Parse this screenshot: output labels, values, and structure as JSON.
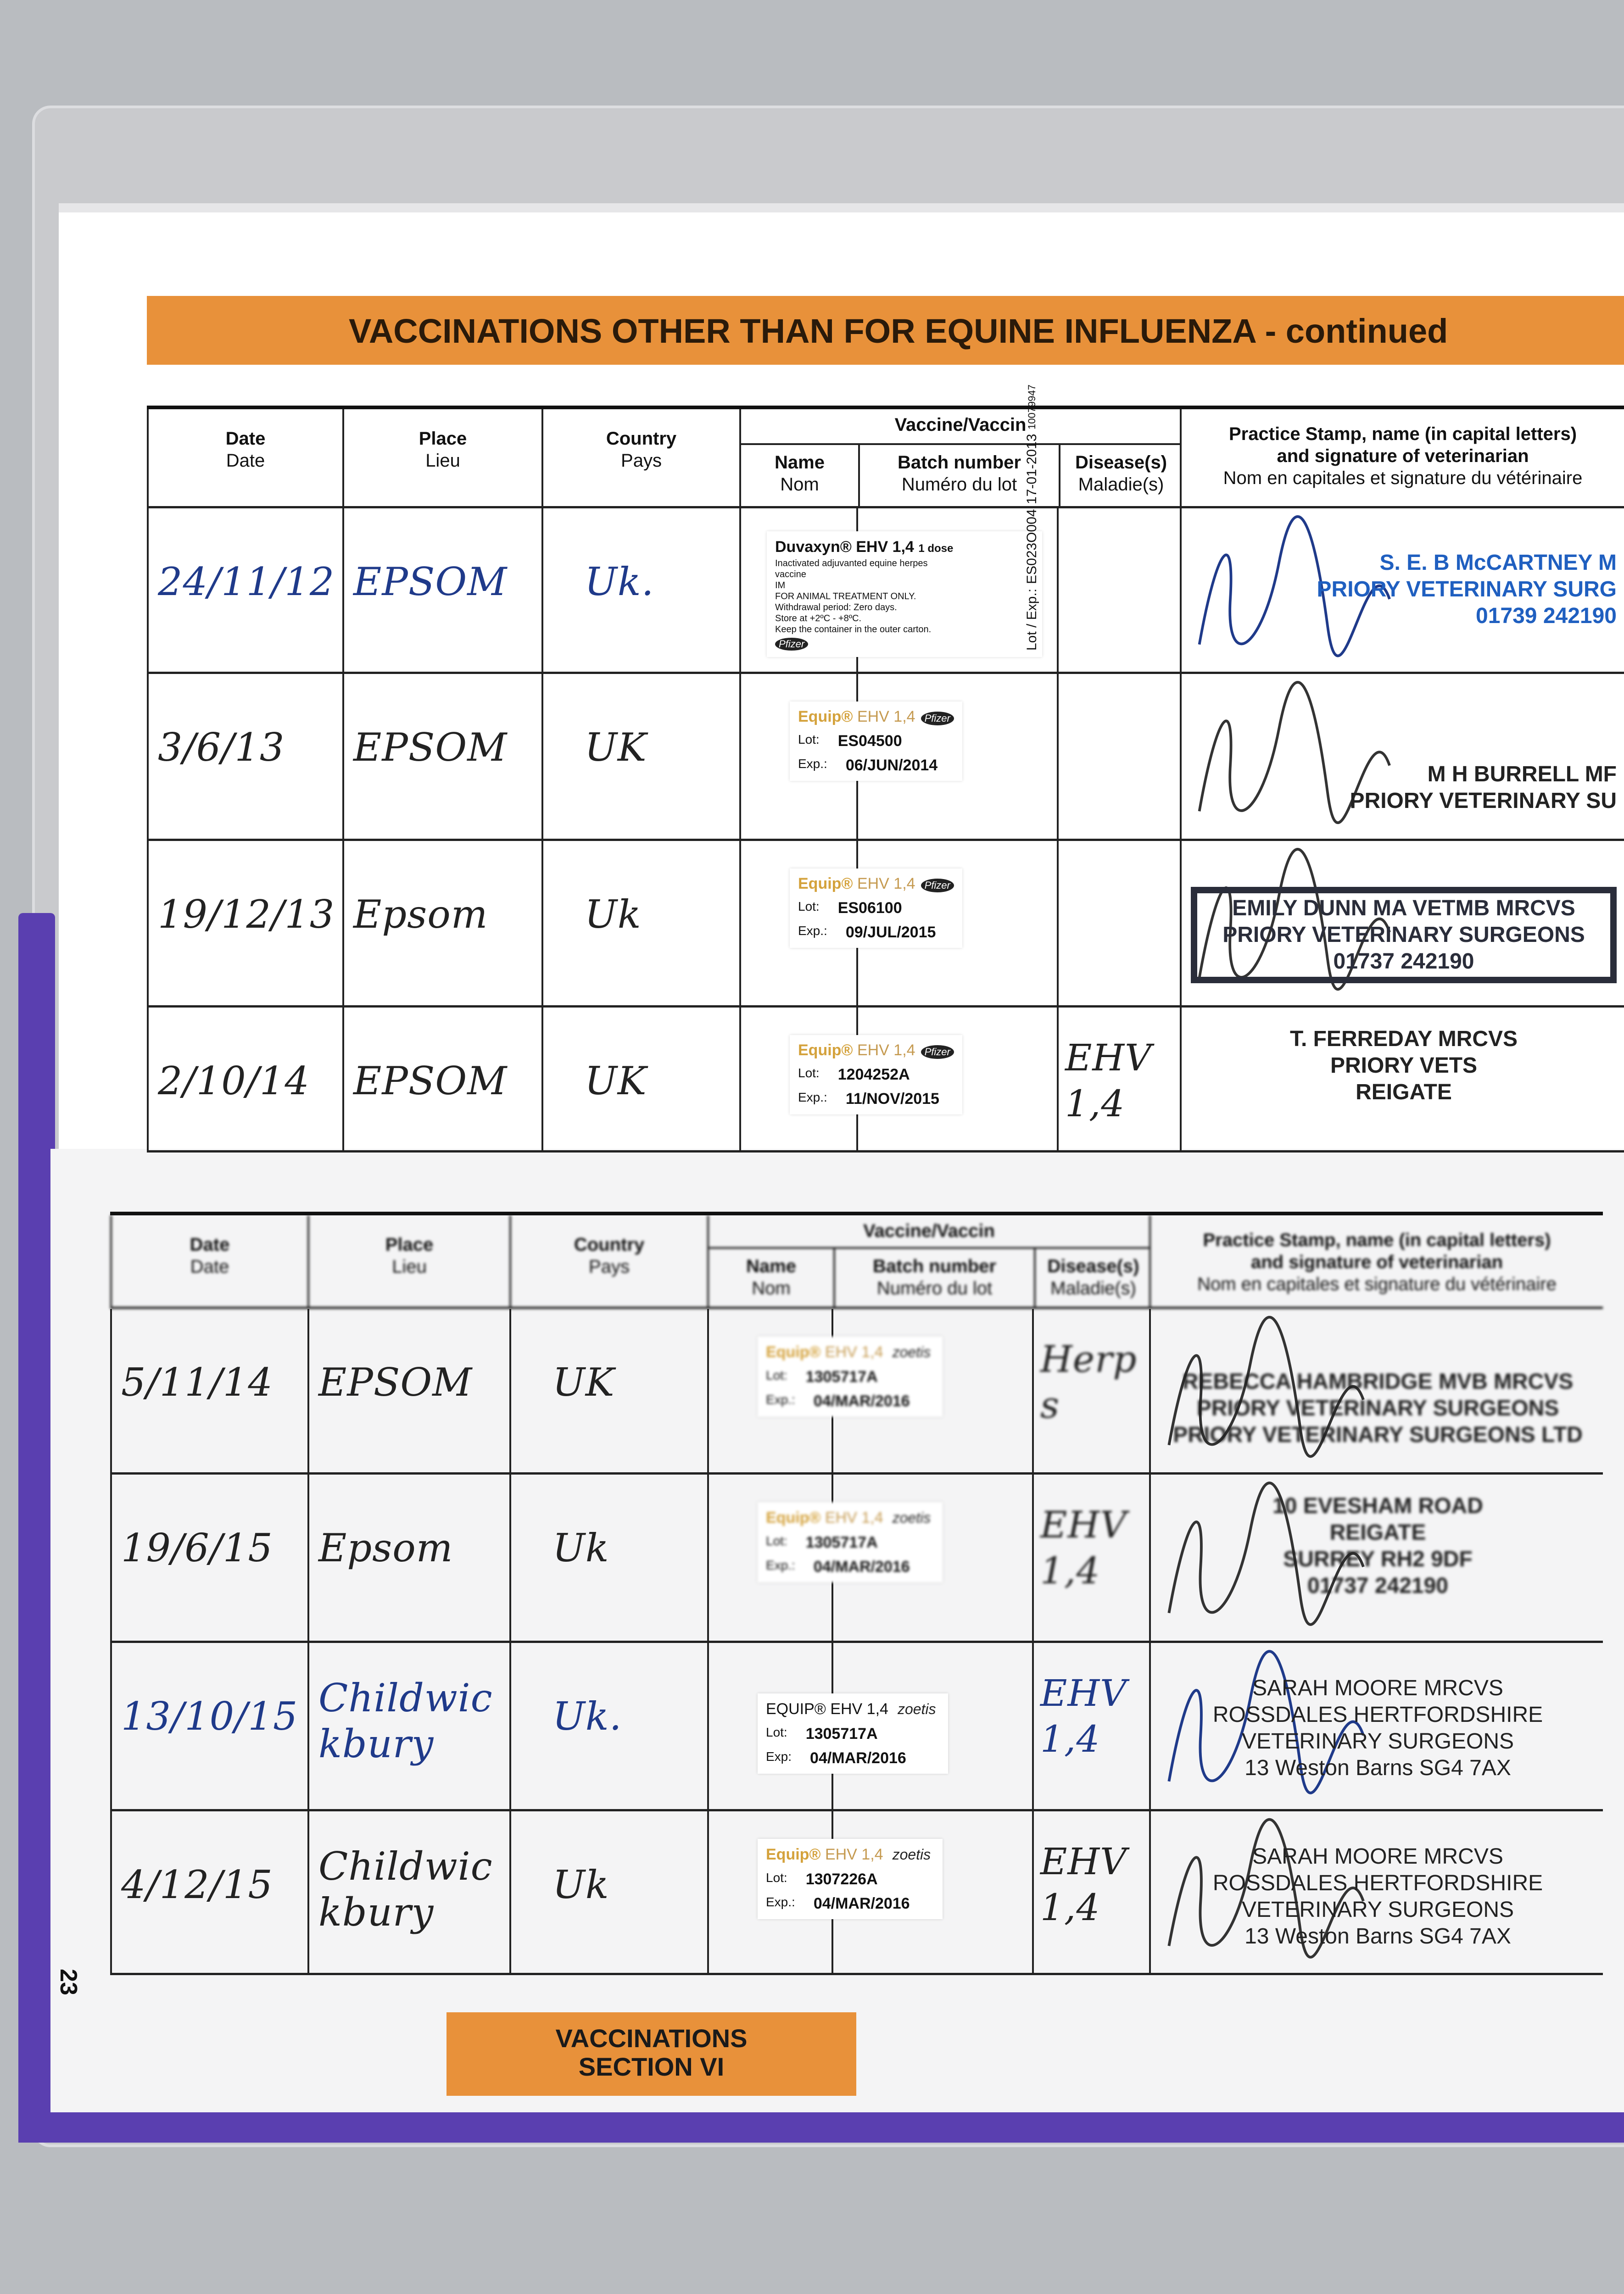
{
  "section_title": "VACCINATIONS OTHER THAN FOR EQUINE INFLUENZA - continued",
  "header": {
    "date": [
      "Date",
      "Date"
    ],
    "place": [
      "Place",
      "Lieu"
    ],
    "country": [
      "Country",
      "Pays"
    ],
    "vaccine": "Vaccine/Vaccin",
    "name": [
      "Name",
      "Nom"
    ],
    "batch": [
      "Batch number",
      "Numéro du lot"
    ],
    "disease": [
      "Disease(s)",
      "Maladie(s)"
    ],
    "stamp": [
      "Practice Stamp, name (in capital letters)",
      "and signature of veterinarian",
      "Nom en capitales et signature du vétérinaire"
    ]
  },
  "upper_rows": [
    {
      "date": "24/11/12",
      "place": "EPSOM",
      "country": "Uk.",
      "disease": "",
      "label": {
        "type": "duvaxyn",
        "brand": "Duvaxyn® EHV 1,4",
        "dose": "1 dose",
        "lines": [
          "Inactivated adjuvanted equine herpes vaccine",
          "IM",
          "FOR ANIMAL TREATMENT ONLY.",
          "Withdrawal period: Zero days.",
          "Store at +2ºC - +8ºC.",
          "Keep the container in the outer carton."
        ],
        "maker": "Pfizer",
        "lot_label": "Lot / Exp.:",
        "lot": "ES023O004",
        "exp": "17-01-2013",
        "code": "10079947"
      },
      "stamp": {
        "lines": [
          "S. E. B McCARTNEY M",
          "PRIORY VETERINARY SURG",
          "01739 242190"
        ],
        "color": "#1f5fc0"
      }
    },
    {
      "date": "3/6/13",
      "place": "EPSOM",
      "country": "UK",
      "disease": "",
      "label": {
        "brand": "Equip®",
        "ehv": "EHV 1,4",
        "maker": "Pfizer",
        "lot_label": "Lot:",
        "lot": "ES04500",
        "exp_label": "Exp.:",
        "exp": "06/JUN/2014"
      },
      "stamp": {
        "lines": [
          "M H BURRELL MF",
          "PRIORY VETERINARY SU"
        ],
        "color": "#222222"
      }
    },
    {
      "date": "19/12/13",
      "place": "Epsom",
      "country": "Uk",
      "disease": "",
      "label": {
        "brand": "Equip®",
        "ehv": "EHV 1,4",
        "maker": "Pfizer",
        "lot_label": "Lot:",
        "lot": "ES06100",
        "exp_label": "Exp.:",
        "exp": "09/JUL/2015"
      },
      "stamp": {
        "lines": [
          "EMILY DUNN MA VETMB MRCVS",
          "PRIORY VETERINARY SURGEONS",
          "01737 242190"
        ],
        "color": "#2a2d3a"
      }
    },
    {
      "date": "2/10/14",
      "place": "EPSOM",
      "country": "UK",
      "disease": "EHV 1,4",
      "label": {
        "brand": "Equip®",
        "ehv": "EHV 1,4",
        "maker": "Pfizer",
        "lot_label": "Lot:",
        "lot": "1204252A",
        "exp_label": "Exp.:",
        "exp": "11/NOV/2015"
      },
      "stamp": {
        "lines": [
          "T. FERREDAY MRCVS",
          "PRIORY VETS",
          "REIGATE"
        ],
        "color": "#222222"
      }
    }
  ],
  "lower_rows": [
    {
      "date": "5/11/14",
      "place": "EPSOM",
      "country": "UK",
      "disease": "Herps",
      "label": {
        "brand": "Equip®",
        "ehv": "EHV 1,4",
        "maker": "zoetis",
        "lot_label": "Lot:",
        "lot": "1305717A",
        "exp_label": "Exp.:",
        "exp": "04/MAR/2016"
      },
      "stamp": {
        "lines": [
          "REBECCA HAMBRIDGE MVB MRCVS",
          "PRIORY VETERINARY SURGEONS",
          "PRIORY VETERINARY SURGEONS LTD"
        ],
        "color": "#222222"
      }
    },
    {
      "date": "19/6/15",
      "place": "Epsom",
      "country": "Uk",
      "disease": "EHV 1,4",
      "label": {
        "brand": "Equip®",
        "ehv": "EHV 1,4",
        "maker": "zoetis",
        "lot_label": "Lot:",
        "lot": "1305717A",
        "exp_label": "Exp.:",
        "exp": "04/MAR/2016"
      },
      "stamp": {
        "lines": [
          "10 EVESHAM ROAD",
          "REIGATE",
          "SURREY RH2 9DF",
          "01737 242190"
        ],
        "color": "#222222"
      }
    },
    {
      "date": "13/10/15",
      "place": "Childwickbury",
      "country": "Uk.",
      "disease": "EHV 1,4",
      "label": {
        "brand": "EQUIP®",
        "ehv": "EHV 1,4",
        "maker": "zoetis",
        "lot_label": "Lot:",
        "lot": "1305717A",
        "exp_label": "Exp:",
        "exp": "04/MAR/2016"
      },
      "stamp": {
        "lines": [
          "SARAH MOORE MRCVS",
          "ROSSDALES HERTFORDSHIRE",
          "VETERINARY SURGEONS",
          "13 Weston Barns SG4 7AX"
        ],
        "color": "#222222"
      }
    },
    {
      "date": "4/12/15",
      "place": "Childwickbury",
      "country": "Uk",
      "disease": "EHV 1,4",
      "label": {
        "brand": "Equip®",
        "ehv": "EHV 1,4",
        "maker": "zoetis",
        "lot_label": "Lot:",
        "lot": "1307226A",
        "exp_label": "Exp.:",
        "exp": "04/MAR/2016"
      },
      "stamp": {
        "lines": [
          "SARAH MOORE MRCVS",
          "ROSSDALES HERTFORDSHIRE",
          "VETERINARY SURGEONS",
          "13 Weston Barns SG4 7AX"
        ],
        "color": "#222222"
      }
    }
  ],
  "page_number": "23",
  "section_box": [
    "VACCINATIONS",
    "SECTION VI"
  ]
}
